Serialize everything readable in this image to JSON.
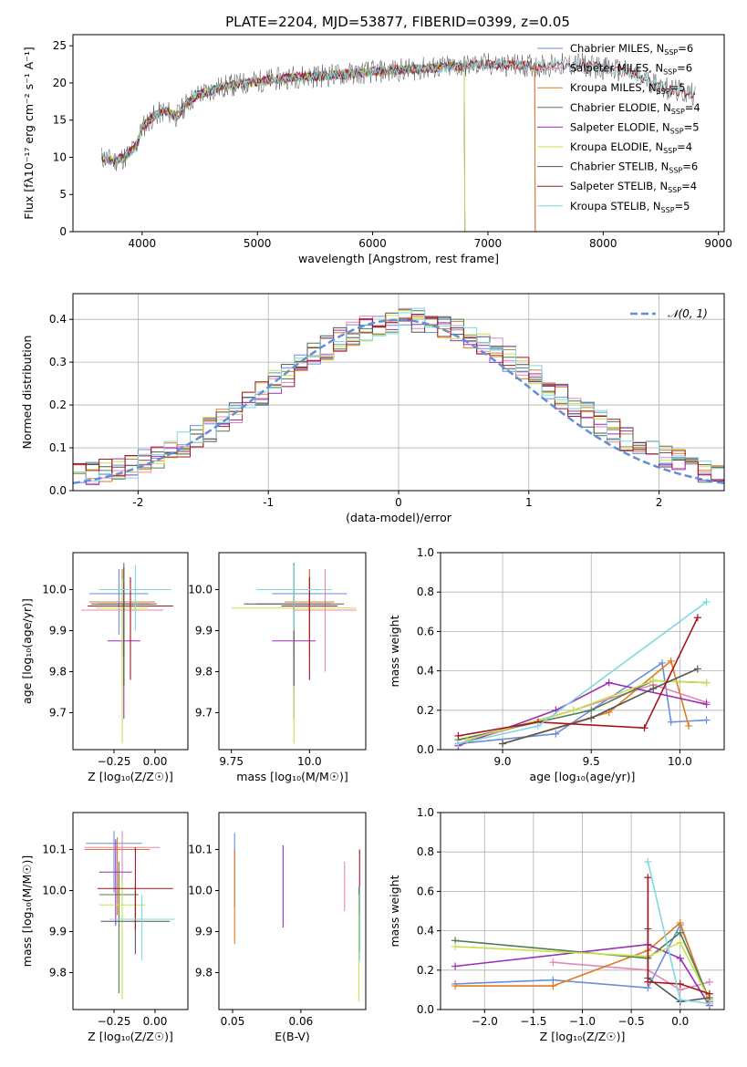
{
  "colors": {
    "chabrier_miles": "#6a8fd8",
    "salpeter_miles": "#e386b8",
    "kroupa_miles": "#e07b1f",
    "chabrier_elodie": "#4f7f4f",
    "salpeter_elodie": "#9b2fb5",
    "kroupa_elodie": "#c9e04a",
    "chabrier_stelib": "#555555",
    "salpeter_stelib": "#a8141d",
    "kroupa_stelib": "#7fd8e0",
    "normal": "#5f8fd8"
  },
  "chart_data": [
    {
      "id": "spectrum",
      "type": "line",
      "title": "PLATE=2204, MJD=53877, FIBERID=0399, z=0.05",
      "xlabel": "wavelength [Angstrom, rest frame]",
      "ylabel": "Flux [fλ10⁻¹⁷ erg cm⁻² s⁻¹ A⁻¹]",
      "xlim": [
        3400,
        9050
      ],
      "ylim": [
        0,
        26.5
      ],
      "xticks": [
        4000,
        5000,
        6000,
        7000,
        8000,
        9000
      ],
      "yticks": [
        0,
        5,
        10,
        15,
        20,
        25
      ],
      "grid": false,
      "legend_position": "top-right",
      "legend": [
        {
          "label": "Chabrier MILES, N",
          "sub": "SSP",
          "tail": "=6",
          "color": "chabrier_miles"
        },
        {
          "label": "Salpeter MILES, N",
          "sub": "SSP",
          "tail": "=6",
          "color": "salpeter_miles"
        },
        {
          "label": "Kroupa MILES, N",
          "sub": "SSP",
          "tail": "=5",
          "color": "kroupa_miles"
        },
        {
          "label": "Chabrier ELODIE, N",
          "sub": "SSP",
          "tail": "=4",
          "color": "chabrier_elodie"
        },
        {
          "label": "Salpeter ELODIE, N",
          "sub": "SSP",
          "tail": "=5",
          "color": "salpeter_elodie"
        },
        {
          "label": "Kroupa ELODIE, N",
          "sub": "SSP",
          "tail": "=4",
          "color": "kroupa_elodie"
        },
        {
          "label": "Chabrier STELIB, N",
          "sub": "SSP",
          "tail": "=6",
          "color": "chabrier_stelib"
        },
        {
          "label": "Salpeter STELIB, N",
          "sub": "SSP",
          "tail": "=4",
          "color": "salpeter_stelib"
        },
        {
          "label": "Kroupa STELIB, N",
          "sub": "SSP",
          "tail": "=5",
          "color": "kroupa_stelib"
        }
      ],
      "continuum": {
        "x": [
          3650,
          3750,
          3850,
          3950,
          4000,
          4100,
          4200,
          4300,
          4400,
          4500,
          4700,
          5000,
          5300,
          5600,
          6000,
          6500,
          7000,
          7400,
          7800,
          8200,
          8600,
          8800
        ],
        "y": [
          10,
          9.5,
          10,
          11.5,
          14,
          15.5,
          16.3,
          15.5,
          17.5,
          18.5,
          19.5,
          20.2,
          20.8,
          21,
          21.5,
          22,
          22.5,
          22.3,
          22.5,
          21.5,
          19,
          18.5
        ]
      },
      "model_ends": {
        "elodie_end_x": 6800,
        "miles_end_x": 7410,
        "stelib_end_x": 8800
      }
    },
    {
      "id": "residuals",
      "type": "bar",
      "xlabel": "(data-model)/error",
      "ylabel": "Normed distribution",
      "xlim": [
        -2.5,
        2.5
      ],
      "ylim": [
        0,
        0.46
      ],
      "xticks": [
        -2,
        -1,
        0,
        1,
        2
      ],
      "yticks": [
        0.0,
        0.1,
        0.2,
        0.3,
        0.4
      ],
      "grid": true,
      "legend_position": "top-right",
      "normal_label": "𝒩(0, 1)",
      "bin_edges_start": -2.5,
      "bin_width": 0.1,
      "base_values": [
        0.036,
        0.04,
        0.045,
        0.05,
        0.058,
        0.068,
        0.08,
        0.093,
        0.108,
        0.125,
        0.143,
        0.163,
        0.184,
        0.206,
        0.228,
        0.251,
        0.273,
        0.295,
        0.316,
        0.335,
        0.352,
        0.367,
        0.379,
        0.389,
        0.395,
        0.398,
        0.397,
        0.393,
        0.386,
        0.375,
        0.361,
        0.345,
        0.327,
        0.307,
        0.286,
        0.265,
        0.243,
        0.221,
        0.199,
        0.178,
        0.158,
        0.139,
        0.122,
        0.106,
        0.092,
        0.079,
        0.068,
        0.058,
        0.049,
        0.042
      ],
      "series_jitter_seed": [
        3,
        7,
        11,
        13,
        17,
        19,
        23,
        29,
        31
      ]
    },
    {
      "id": "age_vs_Z",
      "type": "scatter",
      "xlabel": "Z [log₁₀(Z/Z☉)]",
      "ylabel": "age  [log₁₀(age/yr)]",
      "xlim": [
        -0.5,
        0.2
      ],
      "ylim": [
        9.61,
        10.09
      ],
      "xticks": [
        -0.25,
        0.0
      ],
      "xticklabels": [
        "−0.25",
        "0.00"
      ],
      "yticks": [
        9.7,
        9.8,
        9.9,
        10.0
      ],
      "grid": false,
      "points": [
        {
          "x": -0.22,
          "xerr": 0.18,
          "y": 9.99,
          "yerr": [
            0.1,
            0.06
          ],
          "color": "chabrier_miles"
        },
        {
          "x": -0.2,
          "xerr": 0.25,
          "y": 9.95,
          "yerr": [
            0.12,
            0.1
          ],
          "color": "salpeter_miles"
        },
        {
          "x": -0.2,
          "xerr": 0.2,
          "y": 9.97,
          "yerr": [
            0.13,
            0.08
          ],
          "color": "kroupa_miles"
        },
        {
          "x": -0.19,
          "xerr": 0.16,
          "y": 9.965,
          "yerr": [
            0.13,
            0.1
          ],
          "color": "chabrier_elodie"
        },
        {
          "x": -0.19,
          "xerr": 0.1,
          "y": 9.875,
          "yerr": [
            0.19,
            0.14
          ],
          "color": "salpeter_elodie"
        },
        {
          "x": -0.2,
          "xerr": 0.16,
          "y": 9.955,
          "yerr": [
            0.33,
            0.07
          ],
          "color": "kroupa_elodie"
        },
        {
          "x": -0.19,
          "xerr": 0.2,
          "y": 9.965,
          "yerr": [
            0.2,
            0.09
          ],
          "color": "chabrier_stelib"
        },
        {
          "x": -0.15,
          "xerr": 0.26,
          "y": 9.96,
          "yerr": [
            0.18,
            0.07
          ],
          "color": "salpeter_stelib"
        },
        {
          "x": -0.12,
          "xerr": 0.22,
          "y": 10.0,
          "yerr": [
            0.1,
            0.06
          ],
          "color": "kroupa_stelib"
        }
      ]
    },
    {
      "id": "age_vs_mass",
      "type": "scatter",
      "xlabel": "mass [log₁₀(M/M☉)]",
      "ylabel": "",
      "xlim": [
        9.71,
        10.18
      ],
      "ylim": [
        9.61,
        10.09
      ],
      "xticks": [
        9.75,
        10.0
      ],
      "xticklabels": [
        "9.75",
        "10.0"
      ],
      "yticks": [
        9.7,
        9.8,
        9.9,
        10.0
      ],
      "grid": false,
      "points": [
        {
          "x": 10.0,
          "xerr": 0.12,
          "y": 9.99,
          "yerr": [
            0.1,
            0.06
          ],
          "color": "chabrier_miles"
        },
        {
          "x": 10.05,
          "xerr": 0.1,
          "y": 9.95,
          "yerr": [
            0.15,
            0.1
          ],
          "color": "salpeter_miles"
        },
        {
          "x": 10.0,
          "xerr": 0.08,
          "y": 9.97,
          "yerr": [
            0.13,
            0.08
          ],
          "color": "kroupa_miles"
        },
        {
          "x": 9.95,
          "xerr": 0.12,
          "y": 9.965,
          "yerr": [
            0.13,
            0.1
          ],
          "color": "chabrier_elodie"
        },
        {
          "x": 9.95,
          "xerr": 0.07,
          "y": 9.875,
          "yerr": [
            0.19,
            0.14
          ],
          "color": "salpeter_elodie"
        },
        {
          "x": 9.95,
          "xerr": 0.2,
          "y": 9.955,
          "yerr": [
            0.33,
            0.07
          ],
          "color": "kroupa_elodie"
        },
        {
          "x": 9.95,
          "xerr": 0.16,
          "y": 9.965,
          "yerr": [
            0.2,
            0.09
          ],
          "color": "chabrier_stelib"
        },
        {
          "x": 10.0,
          "xerr": 0.09,
          "y": 9.96,
          "yerr": [
            0.18,
            0.07
          ],
          "color": "salpeter_stelib"
        },
        {
          "x": 9.95,
          "xerr": 0.12,
          "y": 10.0,
          "yerr": [
            0.1,
            0.06
          ],
          "color": "kroupa_stelib"
        }
      ]
    },
    {
      "id": "massweight_vs_age",
      "type": "line",
      "xlabel": "age  [log₁₀(age/yr)]",
      "ylabel": "mass weight",
      "xlim": [
        8.65,
        10.25
      ],
      "ylim": [
        0,
        1
      ],
      "xticks": [
        9.0,
        9.5,
        10.0
      ],
      "xticklabels": [
        "9.0",
        "9.5",
        "10.0"
      ],
      "yticks": [
        0.0,
        0.2,
        0.4,
        0.6,
        0.8,
        1.0
      ],
      "grid": true,
      "series": [
        {
          "color": "chabrier_miles",
          "x": [
            8.75,
            9.3,
            9.9,
            9.95,
            10.15
          ],
          "y": [
            0.03,
            0.08,
            0.44,
            0.14,
            0.15
          ]
        },
        {
          "color": "salpeter_miles",
          "x": [
            8.75,
            9.4,
            9.85,
            10.15
          ],
          "y": [
            0.03,
            0.2,
            0.33,
            0.24
          ]
        },
        {
          "color": "kroupa_miles",
          "x": [
            9.0,
            9.6,
            9.95,
            10.05
          ],
          "y": [
            0.03,
            0.19,
            0.45,
            0.12
          ]
        },
        {
          "color": "chabrier_elodie",
          "x": [
            8.75,
            9.5,
            9.85,
            10.15
          ],
          "y": [
            0.05,
            0.2,
            0.35,
            0.34
          ]
        },
        {
          "color": "salpeter_elodie",
          "x": [
            8.75,
            9.3,
            9.6,
            10.15
          ],
          "y": [
            0.02,
            0.2,
            0.34,
            0.23
          ]
        },
        {
          "color": "kroupa_elodie",
          "x": [
            8.8,
            9.4,
            9.85,
            10.15
          ],
          "y": [
            0.05,
            0.2,
            0.35,
            0.34
          ]
        },
        {
          "color": "chabrier_stelib",
          "x": [
            9.0,
            9.5,
            9.85,
            10.1
          ],
          "y": [
            0.03,
            0.16,
            0.31,
            0.41
          ]
        },
        {
          "color": "salpeter_stelib",
          "x": [
            8.75,
            9.2,
            9.8,
            10.1
          ],
          "y": [
            0.07,
            0.14,
            0.11,
            0.67
          ]
        },
        {
          "color": "kroupa_stelib",
          "x": [
            8.75,
            9.2,
            10.15
          ],
          "y": [
            0.03,
            0.12,
            0.75
          ]
        }
      ]
    },
    {
      "id": "mass_vs_Z",
      "type": "scatter",
      "xlabel": "Z [log₁₀(Z/Z☉)]",
      "ylabel": "mass [log₁₀(M/M☉)]",
      "xlim": [
        -0.5,
        0.2
      ],
      "ylim": [
        9.71,
        10.19
      ],
      "xticks": [
        -0.25,
        0.0
      ],
      "xticklabels": [
        "−0.25",
        "0.00"
      ],
      "yticks": [
        9.8,
        9.9,
        10.0,
        10.1
      ],
      "grid": false,
      "points": [
        {
          "x": -0.25,
          "xerr": 0.17,
          "y": 10.115,
          "yerr": [
            0.12,
            0.03
          ],
          "color": "chabrier_miles"
        },
        {
          "x": -0.2,
          "xerr": 0.23,
          "y": 10.105,
          "yerr": [
            0.12,
            0.04
          ],
          "color": "salpeter_miles"
        },
        {
          "x": -0.23,
          "xerr": 0.2,
          "y": 10.1,
          "yerr": [
            0.16,
            0.03
          ],
          "color": "kroupa_miles"
        },
        {
          "x": -0.22,
          "xerr": 0.12,
          "y": 9.99,
          "yerr": [
            0.24,
            0.08
          ],
          "color": "chabrier_elodie"
        },
        {
          "x": -0.24,
          "xerr": 0.1,
          "y": 10.045,
          "yerr": [
            0.13,
            0.08
          ],
          "color": "salpeter_elodie"
        },
        {
          "x": -0.2,
          "xerr": 0.14,
          "y": 9.965,
          "yerr": [
            0.23,
            0.06
          ],
          "color": "kroupa_elodie"
        },
        {
          "x": -0.12,
          "xerr": 0.21,
          "y": 9.925,
          "yerr": [
            0.08,
            0.09
          ],
          "color": "chabrier_stelib"
        },
        {
          "x": -0.12,
          "xerr": 0.23,
          "y": 10.005,
          "yerr": [
            0.1,
            0.1
          ],
          "color": "salpeter_stelib"
        },
        {
          "x": -0.08,
          "xerr": 0.2,
          "y": 9.93,
          "yerr": [
            0.1,
            0.06
          ],
          "color": "kroupa_stelib"
        }
      ]
    },
    {
      "id": "mass_vs_EBV",
      "type": "scatter",
      "xlabel": "E(B-V)",
      "ylabel": "",
      "xlim": [
        0.048,
        0.0695
      ],
      "ylim": [
        9.71,
        10.19
      ],
      "xticks": [
        0.05,
        0.06
      ],
      "xticklabels": [
        "0.05",
        "0.06"
      ],
      "yticks": [
        9.8,
        9.9,
        10.0,
        10.1
      ],
      "grid": false,
      "points": [
        {
          "x": 0.0503,
          "y": 10.06,
          "yerr": [
            0.1,
            0.08
          ],
          "color": "chabrier_miles"
        },
        {
          "x": 0.0664,
          "y": 10.01,
          "yerr": [
            0.06,
            0.06
          ],
          "color": "salpeter_miles"
        },
        {
          "x": 0.0503,
          "y": 9.99,
          "yerr": [
            0.12,
            0.11
          ],
          "color": "kroupa_miles"
        },
        {
          "x": 0.0685,
          "y": 9.9,
          "yerr": [
            0.08,
            0.11
          ],
          "color": "chabrier_elodie"
        },
        {
          "x": 0.0574,
          "y": 10.03,
          "yerr": [
            0.12,
            0.08
          ],
          "color": "salpeter_elodie"
        },
        {
          "x": 0.0685,
          "y": 9.85,
          "yerr": [
            0.12,
            0.14
          ],
          "color": "kroupa_elodie"
        },
        {
          "x": 0.0686,
          "y": 9.95,
          "yerr": [
            0.1,
            0.06
          ],
          "color": "chabrier_stelib"
        },
        {
          "x": 0.0686,
          "y": 10.0,
          "yerr": [
            0.06,
            0.1
          ],
          "color": "salpeter_stelib"
        },
        {
          "x": 0.0686,
          "y": 9.95,
          "yerr": [
            0.12,
            0.06
          ],
          "color": "kroupa_stelib"
        }
      ]
    },
    {
      "id": "massweight_vs_Z",
      "type": "line",
      "xlabel": "Z [log₁₀(Z/Z☉)]",
      "ylabel": "mass weight",
      "xlim": [
        -2.45,
        0.45
      ],
      "ylim": [
        0,
        1
      ],
      "xticks": [
        -2.0,
        -1.5,
        -1.0,
        -0.5,
        0.0
      ],
      "xticklabels": [
        "−2.0",
        "−1.5",
        "−1.0",
        "−0.5",
        "0.0"
      ],
      "yticks": [
        0.0,
        0.2,
        0.4,
        0.6,
        0.8,
        1.0
      ],
      "grid": true,
      "series": [
        {
          "color": "chabrier_miles",
          "x": [
            -2.3,
            -1.3,
            -0.33,
            0.0,
            0.3
          ],
          "y": [
            0.13,
            0.15,
            0.11,
            0.43,
            0.04
          ]
        },
        {
          "color": "salpeter_miles",
          "x": [
            -1.3,
            -0.33,
            0.0,
            0.3
          ],
          "y": [
            0.24,
            0.2,
            0.1,
            0.14
          ]
        },
        {
          "color": "kroupa_miles",
          "x": [
            -2.3,
            -1.3,
            -0.33,
            0.0,
            0.3
          ],
          "y": [
            0.12,
            0.12,
            0.3,
            0.44,
            0.03
          ]
        },
        {
          "color": "chabrier_elodie",
          "x": [
            -2.3,
            -0.33,
            0.0,
            0.3
          ],
          "y": [
            0.35,
            0.26,
            0.39,
            0.05
          ]
        },
        {
          "color": "salpeter_elodie",
          "x": [
            -2.3,
            -0.33,
            0.0,
            0.3
          ],
          "y": [
            0.22,
            0.33,
            0.26,
            0.02
          ]
        },
        {
          "color": "kroupa_elodie",
          "x": [
            -2.3,
            -0.33,
            0.0,
            0.3
          ],
          "y": [
            0.32,
            0.27,
            0.34,
            0.05
          ]
        },
        {
          "color": "chabrier_stelib",
          "x": [
            -0.33,
            -0.33,
            0.0,
            0.3
          ],
          "y": [
            0.41,
            0.16,
            0.04,
            0.06
          ]
        },
        {
          "color": "salpeter_stelib",
          "x": [
            -0.33,
            -0.33,
            0.0,
            0.3
          ],
          "y": [
            0.67,
            0.14,
            0.13,
            0.08
          ]
        },
        {
          "color": "kroupa_stelib",
          "x": [
            -0.33,
            0.0,
            0.3
          ],
          "y": [
            0.75,
            0.05,
            0.03
          ]
        }
      ]
    }
  ]
}
